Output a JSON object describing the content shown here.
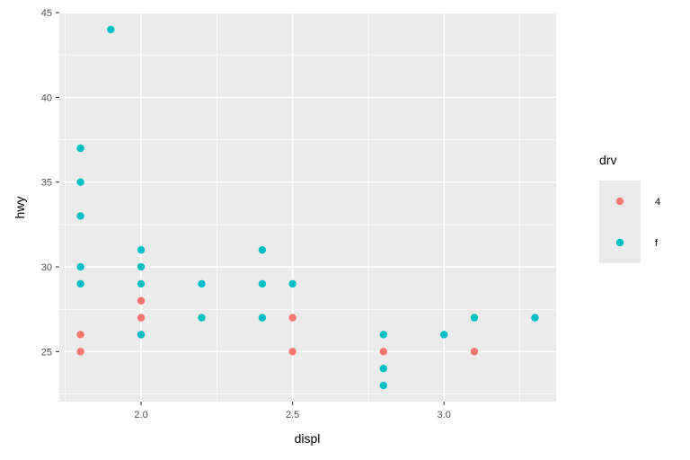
{
  "chart_data": {
    "type": "scatter",
    "title": "",
    "xlabel": "displ",
    "ylabel": "hwy",
    "xlim": [
      1.73,
      3.37
    ],
    "ylim": [
      22.05,
      44.95
    ],
    "x_ticks": [
      2.0,
      2.5,
      3.0
    ],
    "x_tick_labels": [
      "2.0",
      "2.5",
      "3.0"
    ],
    "y_ticks": [
      25,
      30,
      35,
      40,
      45
    ],
    "y_tick_labels": [
      "25",
      "30",
      "35",
      "40",
      "45"
    ],
    "grid": true,
    "legend": {
      "title": "drv",
      "position": "right",
      "entries": [
        {
          "label": "4",
          "color": "#F8766D"
        },
        {
          "label": "f",
          "color": "#00BFC4"
        }
      ]
    },
    "series": [
      {
        "name": "4",
        "color": "#F8766D",
        "points": [
          {
            "x": 1.8,
            "y": 26
          },
          {
            "x": 1.8,
            "y": 25
          },
          {
            "x": 2.0,
            "y": 28
          },
          {
            "x": 2.0,
            "y": 27
          },
          {
            "x": 2.0,
            "y": 26
          },
          {
            "x": 2.5,
            "y": 27
          },
          {
            "x": 2.5,
            "y": 25
          },
          {
            "x": 2.8,
            "y": 25
          },
          {
            "x": 3.1,
            "y": 25
          }
        ]
      },
      {
        "name": "f",
        "color": "#00BFC4",
        "points": [
          {
            "x": 1.8,
            "y": 37
          },
          {
            "x": 1.8,
            "y": 35
          },
          {
            "x": 1.8,
            "y": 33
          },
          {
            "x": 1.8,
            "y": 30
          },
          {
            "x": 1.8,
            "y": 29
          },
          {
            "x": 1.9,
            "y": 44
          },
          {
            "x": 2.0,
            "y": 31
          },
          {
            "x": 2.0,
            "y": 30
          },
          {
            "x": 2.0,
            "y": 29
          },
          {
            "x": 2.0,
            "y": 26
          },
          {
            "x": 2.2,
            "y": 29
          },
          {
            "x": 2.2,
            "y": 27
          },
          {
            "x": 2.4,
            "y": 31
          },
          {
            "x": 2.4,
            "y": 29
          },
          {
            "x": 2.4,
            "y": 27
          },
          {
            "x": 2.5,
            "y": 29
          },
          {
            "x": 2.8,
            "y": 26
          },
          {
            "x": 2.8,
            "y": 24
          },
          {
            "x": 2.8,
            "y": 23
          },
          {
            "x": 3.0,
            "y": 26
          },
          {
            "x": 3.1,
            "y": 27
          },
          {
            "x": 3.3,
            "y": 27
          }
        ]
      }
    ]
  }
}
